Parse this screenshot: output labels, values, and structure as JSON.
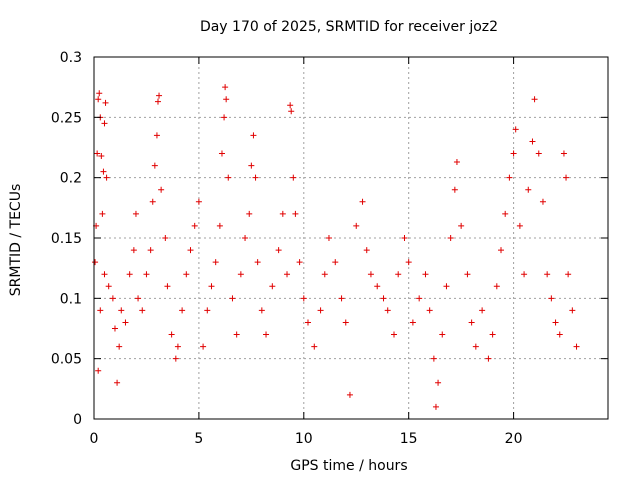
{
  "chart_data": {
    "type": "scatter",
    "title": "Day 170 of 2025, SRMTID for receiver joz2",
    "xlabel": "GPS time / hours",
    "ylabel": "SRMTID / TECUs",
    "xlim": [
      0,
      24.5
    ],
    "ylim": [
      0,
      0.3
    ],
    "x_ticks": [
      0,
      5,
      10,
      15,
      20
    ],
    "y_ticks": [
      0,
      0.05,
      0.1,
      0.15,
      0.2,
      0.25,
      0.3
    ],
    "x_tick_labels": [
      "0",
      "5",
      "10",
      "15",
      "20"
    ],
    "y_tick_labels": [
      "0",
      "0.05",
      "0.1",
      "0.15",
      "0.2",
      "0.25",
      "0.3"
    ],
    "grid": true,
    "marker": "plus",
    "series": [
      {
        "name": "joz2 SRMTID",
        "color": "#e00000",
        "points": [
          [
            0.05,
            0.13
          ],
          [
            0.1,
            0.16
          ],
          [
            0.15,
            0.22
          ],
          [
            0.2,
            0.265
          ],
          [
            0.25,
            0.27
          ],
          [
            0.3,
            0.25
          ],
          [
            0.35,
            0.218
          ],
          [
            0.4,
            0.17
          ],
          [
            0.45,
            0.205
          ],
          [
            0.5,
            0.245
          ],
          [
            0.55,
            0.262
          ],
          [
            0.6,
            0.2
          ],
          [
            0.2,
            0.04
          ],
          [
            0.3,
            0.09
          ],
          [
            0.5,
            0.12
          ],
          [
            0.7,
            0.11
          ],
          [
            0.9,
            0.1
          ],
          [
            1.0,
            0.075
          ],
          [
            1.1,
            0.03
          ],
          [
            1.2,
            0.06
          ],
          [
            1.3,
            0.09
          ],
          [
            1.5,
            0.08
          ],
          [
            1.7,
            0.12
          ],
          [
            1.9,
            0.14
          ],
          [
            2.0,
            0.17
          ],
          [
            2.1,
            0.1
          ],
          [
            2.3,
            0.09
          ],
          [
            2.5,
            0.12
          ],
          [
            2.7,
            0.14
          ],
          [
            2.8,
            0.18
          ],
          [
            2.9,
            0.21
          ],
          [
            3.0,
            0.235
          ],
          [
            3.05,
            0.263
          ],
          [
            3.1,
            0.268
          ],
          [
            3.2,
            0.19
          ],
          [
            3.4,
            0.15
          ],
          [
            3.5,
            0.11
          ],
          [
            3.7,
            0.07
          ],
          [
            3.9,
            0.05
          ],
          [
            4.0,
            0.06
          ],
          [
            4.2,
            0.09
          ],
          [
            4.4,
            0.12
          ],
          [
            4.6,
            0.14
          ],
          [
            4.8,
            0.16
          ],
          [
            5.0,
            0.18
          ],
          [
            5.2,
            0.06
          ],
          [
            5.4,
            0.09
          ],
          [
            5.6,
            0.11
          ],
          [
            5.8,
            0.13
          ],
          [
            6.0,
            0.16
          ],
          [
            6.1,
            0.22
          ],
          [
            6.2,
            0.25
          ],
          [
            6.25,
            0.275
          ],
          [
            6.3,
            0.265
          ],
          [
            6.4,
            0.2
          ],
          [
            6.6,
            0.1
          ],
          [
            6.8,
            0.07
          ],
          [
            7.0,
            0.12
          ],
          [
            7.2,
            0.15
          ],
          [
            7.4,
            0.17
          ],
          [
            7.5,
            0.21
          ],
          [
            7.6,
            0.235
          ],
          [
            7.7,
            0.2
          ],
          [
            7.8,
            0.13
          ],
          [
            8.0,
            0.09
          ],
          [
            8.2,
            0.07
          ],
          [
            8.5,
            0.11
          ],
          [
            8.8,
            0.14
          ],
          [
            9.0,
            0.17
          ],
          [
            9.2,
            0.12
          ],
          [
            9.35,
            0.26
          ],
          [
            9.4,
            0.255
          ],
          [
            9.5,
            0.2
          ],
          [
            9.6,
            0.17
          ],
          [
            9.8,
            0.13
          ],
          [
            10.0,
            0.1
          ],
          [
            10.2,
            0.08
          ],
          [
            10.5,
            0.06
          ],
          [
            10.8,
            0.09
          ],
          [
            11.0,
            0.12
          ],
          [
            11.2,
            0.15
          ],
          [
            11.5,
            0.13
          ],
          [
            11.8,
            0.1
          ],
          [
            12.0,
            0.08
          ],
          [
            12.2,
            0.02
          ],
          [
            12.5,
            0.16
          ],
          [
            12.8,
            0.18
          ],
          [
            13.0,
            0.14
          ],
          [
            13.2,
            0.12
          ],
          [
            13.5,
            0.11
          ],
          [
            13.8,
            0.1
          ],
          [
            14.0,
            0.09
          ],
          [
            14.3,
            0.07
          ],
          [
            14.5,
            0.12
          ],
          [
            14.8,
            0.15
          ],
          [
            15.0,
            0.13
          ],
          [
            15.2,
            0.08
          ],
          [
            15.5,
            0.1
          ],
          [
            15.8,
            0.12
          ],
          [
            16.0,
            0.09
          ],
          [
            16.2,
            0.05
          ],
          [
            16.3,
            0.01
          ],
          [
            16.4,
            0.03
          ],
          [
            16.6,
            0.07
          ],
          [
            16.8,
            0.11
          ],
          [
            17.0,
            0.15
          ],
          [
            17.2,
            0.19
          ],
          [
            17.3,
            0.213
          ],
          [
            17.5,
            0.16
          ],
          [
            17.8,
            0.12
          ],
          [
            18.0,
            0.08
          ],
          [
            18.2,
            0.06
          ],
          [
            18.5,
            0.09
          ],
          [
            18.8,
            0.05
          ],
          [
            19.0,
            0.07
          ],
          [
            19.2,
            0.11
          ],
          [
            19.4,
            0.14
          ],
          [
            19.6,
            0.17
          ],
          [
            19.8,
            0.2
          ],
          [
            20.0,
            0.22
          ],
          [
            20.1,
            0.24
          ],
          [
            20.3,
            0.16
          ],
          [
            20.5,
            0.12
          ],
          [
            20.7,
            0.19
          ],
          [
            20.9,
            0.23
          ],
          [
            21.0,
            0.265
          ],
          [
            21.2,
            0.22
          ],
          [
            21.4,
            0.18
          ],
          [
            21.6,
            0.12
          ],
          [
            21.8,
            0.1
          ],
          [
            22.0,
            0.08
          ],
          [
            22.2,
            0.07
          ],
          [
            22.4,
            0.22
          ],
          [
            22.5,
            0.2
          ],
          [
            22.6,
            0.12
          ],
          [
            22.8,
            0.09
          ],
          [
            23.0,
            0.06
          ]
        ]
      }
    ]
  }
}
